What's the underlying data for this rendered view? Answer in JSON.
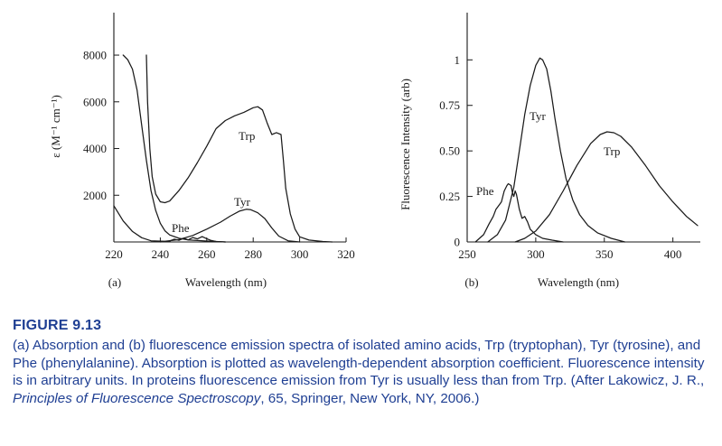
{
  "caption": {
    "figure_label": "FIGURE 9.13",
    "text_part1": "(a) Absorption and (b) fluorescence emission spectra of isolated amino acids, Trp (tryptophan), Tyr (tyrosine), and Phe (phenylalanine). Absorption is plotted as wavelength-dependent absorption coefficient. Fluorescence intensity is in arbitrary units. In proteins fluorescence emission from Tyr is usually less than from Trp. (After Lakowicz, J. R., ",
    "text_italic": "Principles of Fluorescence Spectroscopy",
    "text_part2": ", 65, Springer, New York, NY, 2006.)"
  },
  "chart_data": [
    {
      "type": "line",
      "panel_label": "(a)",
      "xlabel": "Wavelength (nm)",
      "ylabel": "ε (M⁻¹ cm⁻¹)",
      "xlim": [
        220,
        320
      ],
      "ylim": [
        0,
        9200
      ],
      "xticks": [
        220,
        240,
        260,
        280,
        300,
        320
      ],
      "xtick_labels": [
        "220",
        "240",
        "260",
        "280",
        "300",
        "320"
      ],
      "yticks": [
        2000,
        4000,
        6000,
        8000
      ],
      "ytick_labels": [
        "2000",
        "4000",
        "6000",
        "8000"
      ],
      "grid": false,
      "series": [
        {
          "name": "Trp",
          "points": [
            [
              234,
              8000
            ],
            [
              234.5,
              6000
            ],
            [
              235.5,
              4000
            ],
            [
              236.5,
              2800
            ],
            [
              238,
              2050
            ],
            [
              240,
              1720
            ],
            [
              242,
              1680
            ],
            [
              244,
              1750
            ],
            [
              248,
              2200
            ],
            [
              252,
              2750
            ],
            [
              256,
              3400
            ],
            [
              260,
              4100
            ],
            [
              264,
              4850
            ],
            [
              268,
              5200
            ],
            [
              272,
              5400
            ],
            [
              276,
              5550
            ],
            [
              280,
              5750
            ],
            [
              282,
              5790
            ],
            [
              284,
              5650
            ],
            [
              286,
              5100
            ],
            [
              288,
              4600
            ],
            [
              290,
              4680
            ],
            [
              292,
              4600
            ],
            [
              293,
              3500
            ],
            [
              294,
              2300
            ],
            [
              296,
              1200
            ],
            [
              298,
              550
            ],
            [
              300,
              220
            ],
            [
              304,
              80
            ],
            [
              310,
              20
            ],
            [
              314,
              0
            ]
          ]
        },
        {
          "name": "Tyr",
          "points": [
            [
              220,
              1550
            ],
            [
              224,
              900
            ],
            [
              228,
              450
            ],
            [
              232,
              180
            ],
            [
              236,
              50
            ],
            [
              242,
              30
            ],
            [
              248,
              100
            ],
            [
              254,
              280
            ],
            [
              260,
              550
            ],
            [
              266,
              850
            ],
            [
              270,
              1100
            ],
            [
              274,
              1320
            ],
            [
              277,
              1400
            ],
            [
              279,
              1380
            ],
            [
              282,
              1250
            ],
            [
              285,
              1000
            ],
            [
              288,
              600
            ],
            [
              291,
              250
            ],
            [
              295,
              50
            ],
            [
              300,
              0
            ]
          ]
        },
        {
          "name": "Phe",
          "points": [
            [
              240,
              0
            ],
            [
              244,
              40
            ],
            [
              246,
              120
            ],
            [
              248,
              70
            ],
            [
              250,
              160
            ],
            [
              252,
              90
            ],
            [
              254,
              190
            ],
            [
              256,
              130
            ],
            [
              258,
              230
            ],
            [
              260,
              140
            ],
            [
              262,
              60
            ],
            [
              264,
              20
            ],
            [
              268,
              0
            ]
          ]
        },
        {
          "name": "",
          "points": [
            [
              224,
              8000
            ],
            [
              226,
              7800
            ],
            [
              228,
              7400
            ],
            [
              230,
              6500
            ],
            [
              232,
              5000
            ],
            [
              234,
              3500
            ],
            [
              236,
              2200
            ],
            [
              238,
              1350
            ],
            [
              240,
              800
            ],
            [
              242,
              480
            ],
            [
              244,
              300
            ],
            [
              248,
              160
            ],
            [
              252,
              90
            ],
            [
              256,
              60
            ],
            [
              260,
              40
            ],
            [
              264,
              20
            ],
            [
              268,
              0
            ]
          ]
        }
      ],
      "annotations": [
        "Trp",
        "Tyr",
        "Phe"
      ]
    },
    {
      "type": "line",
      "panel_label": "(b)",
      "xlabel": "Wavelength (nm)",
      "ylabel": "Fluorescence Intensity (arb)",
      "xlim": [
        250,
        420
      ],
      "ylim": [
        0,
        1.18
      ],
      "xticks": [
        250,
        300,
        350,
        400
      ],
      "xtick_labels": [
        "250",
        "300",
        "350",
        "400"
      ],
      "yticks": [
        0,
        0.25,
        0.5,
        0.75,
        1
      ],
      "ytick_labels": [
        "0",
        "0.25",
        "0.50",
        "0.75",
        "1"
      ],
      "grid": false,
      "series": [
        {
          "name": "Phe",
          "points": [
            [
              256,
              0
            ],
            [
              262,
              0.04
            ],
            [
              266,
              0.1
            ],
            [
              269,
              0.14
            ],
            [
              271,
              0.18
            ],
            [
              273,
              0.2
            ],
            [
              275,
              0.22
            ],
            [
              277,
              0.28
            ],
            [
              279,
              0.31
            ],
            [
              280,
              0.32
            ],
            [
              282,
              0.31
            ],
            [
              283,
              0.27
            ],
            [
              284,
              0.25
            ],
            [
              285,
              0.28
            ],
            [
              286,
              0.26
            ],
            [
              288,
              0.18
            ],
            [
              290,
              0.13
            ],
            [
              292,
              0.14
            ],
            [
              294,
              0.11
            ],
            [
              296,
              0.07
            ],
            [
              300,
              0.04
            ],
            [
              305,
              0.02
            ],
            [
              312,
              0.01
            ],
            [
              320,
              0
            ]
          ]
        },
        {
          "name": "Tyr",
          "points": [
            [
              265,
              0
            ],
            [
              272,
              0.04
            ],
            [
              278,
              0.12
            ],
            [
              284,
              0.3
            ],
            [
              288,
              0.5
            ],
            [
              292,
              0.7
            ],
            [
              296,
              0.86
            ],
            [
              300,
              0.97
            ],
            [
              303,
              1.01
            ],
            [
              305,
              1.0
            ],
            [
              308,
              0.95
            ],
            [
              311,
              0.83
            ],
            [
              314,
              0.68
            ],
            [
              318,
              0.5
            ],
            [
              322,
              0.35
            ],
            [
              327,
              0.23
            ],
            [
              332,
              0.15
            ],
            [
              338,
              0.09
            ],
            [
              345,
              0.05
            ],
            [
              355,
              0.02
            ],
            [
              365,
              0
            ]
          ]
        },
        {
          "name": "Trp",
          "points": [
            [
              285,
              0
            ],
            [
              292,
              0.02
            ],
            [
              300,
              0.06
            ],
            [
              310,
              0.15
            ],
            [
              320,
              0.28
            ],
            [
              330,
              0.42
            ],
            [
              340,
              0.54
            ],
            [
              347,
              0.59
            ],
            [
              352,
              0.605
            ],
            [
              357,
              0.6
            ],
            [
              362,
              0.58
            ],
            [
              370,
              0.52
            ],
            [
              380,
              0.42
            ],
            [
              390,
              0.31
            ],
            [
              400,
              0.22
            ],
            [
              410,
              0.14
            ],
            [
              418,
              0.09
            ]
          ]
        }
      ],
      "annotations": [
        "Phe",
        "Tyr",
        "Trp"
      ]
    }
  ]
}
